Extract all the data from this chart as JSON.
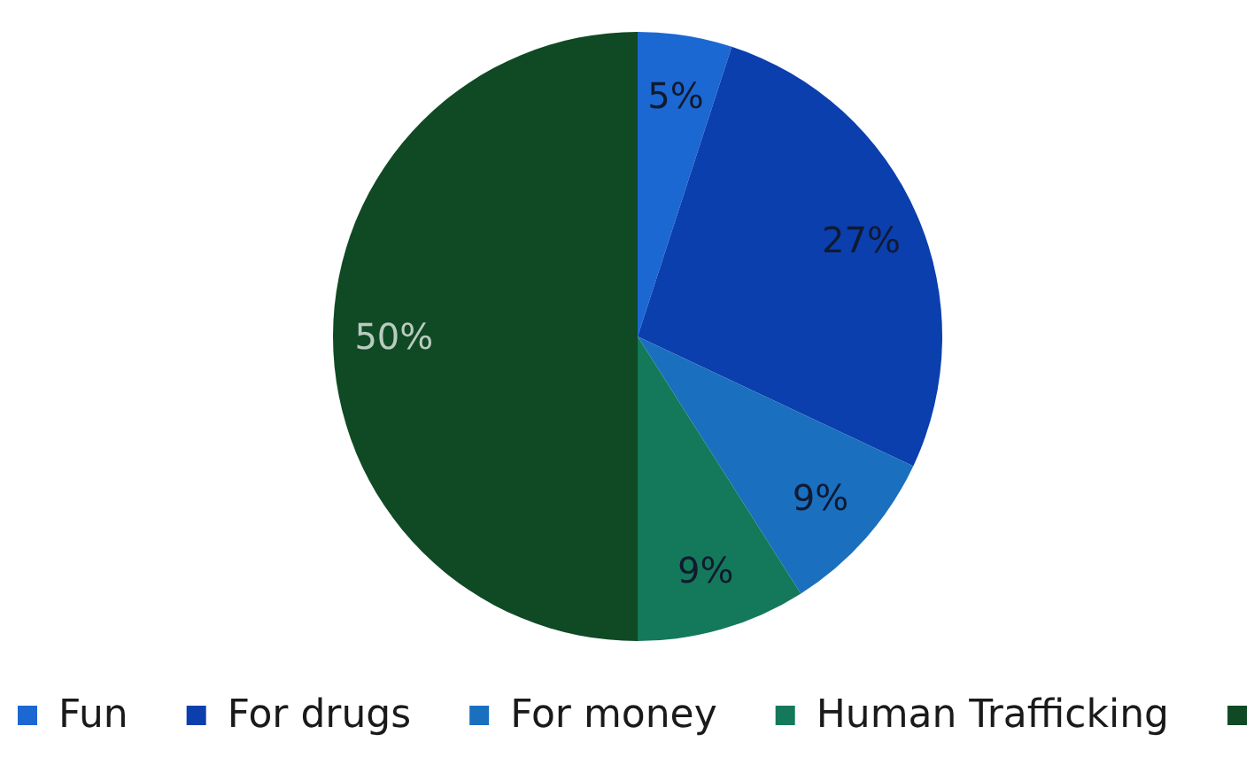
{
  "chart_data": {
    "type": "pie",
    "categories": [
      "Fun",
      "For drugs",
      "For money",
      "Human Trafficking",
      null
    ],
    "values": [
      5,
      27,
      9,
      9,
      50
    ],
    "colors": [
      "#1c68d2",
      "#0b3fae",
      "#1a6fbf",
      "#14795a",
      "#0f4a24"
    ],
    "value_labels": [
      "5%",
      "27%",
      "9%",
      "9%",
      "50%"
    ],
    "legend": "bottom"
  }
}
